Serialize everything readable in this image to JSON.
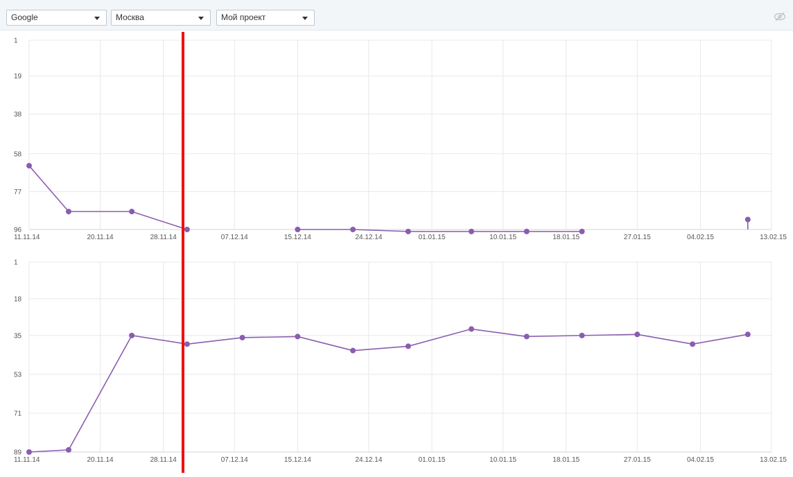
{
  "toolbar": {
    "search_engine": "Google",
    "region": "Москва",
    "project": "Мой проект",
    "visibility_icon": "eye-slash-icon"
  },
  "colors": {
    "series": "#8a5db0",
    "marker_line": "#ee1111",
    "grid": "#e8e8e8"
  },
  "chart_data": [
    {
      "type": "line",
      "x_ticks": [
        "11.11.14",
        "20.11.14",
        "28.11.14",
        "07.12.14",
        "15.12.14",
        "24.12.14",
        "01.01.15",
        "10.01.15",
        "18.01.15",
        "27.01.15",
        "04.02.15",
        "13.02.15"
      ],
      "y_ticks": [
        1,
        19,
        38,
        58,
        77,
        96
      ],
      "ylim": [
        96,
        1
      ],
      "y_inverted": true,
      "grid": true,
      "series": [
        {
          "segments": [
            [
              {
                "x": "11.11.14",
                "y": 64
              },
              {
                "x": "16.11.14",
                "y": 87
              },
              {
                "x": "24.11.14",
                "y": 87
              },
              {
                "x": "01.12.14",
                "y": 96
              }
            ],
            [
              {
                "x": "15.12.14",
                "y": 96
              },
              {
                "x": "22.12.14",
                "y": 96
              },
              {
                "x": "29.12.14",
                "y": 97
              },
              {
                "x": "06.01.15",
                "y": 97
              },
              {
                "x": "13.01.15",
                "y": 97
              },
              {
                "x": "20.01.15",
                "y": 97
              }
            ],
            [
              {
                "x": "10.02.15",
                "y": 91
              }
            ]
          ]
        }
      ]
    },
    {
      "type": "line",
      "x_ticks": [
        "11.11.14",
        "20.11.14",
        "28.11.14",
        "07.12.14",
        "15.12.14",
        "24.12.14",
        "01.01.15",
        "10.01.15",
        "18.01.15",
        "27.01.15",
        "04.02.15",
        "13.02.15"
      ],
      "y_ticks": [
        1,
        18,
        35,
        53,
        71,
        89
      ],
      "ylim": [
        89,
        1
      ],
      "y_inverted": true,
      "grid": true,
      "series": [
        {
          "segments": [
            [
              {
                "x": "11.11.14",
                "y": 89
              },
              {
                "x": "16.11.14",
                "y": 88
              },
              {
                "x": "24.11.14",
                "y": 35
              },
              {
                "x": "01.12.14",
                "y": 39
              },
              {
                "x": "08.12.14",
                "y": 36
              },
              {
                "x": "15.12.14",
                "y": 35.5
              },
              {
                "x": "22.12.14",
                "y": 42
              },
              {
                "x": "29.12.14",
                "y": 40
              },
              {
                "x": "06.01.15",
                "y": 32
              },
              {
                "x": "13.01.15",
                "y": 35.5
              },
              {
                "x": "20.01.15",
                "y": 35
              },
              {
                "x": "27.01.15",
                "y": 34.5
              },
              {
                "x": "03.02.15",
                "y": 39
              },
              {
                "x": "10.02.15",
                "y": 34.5
              }
            ]
          ]
        }
      ]
    }
  ]
}
